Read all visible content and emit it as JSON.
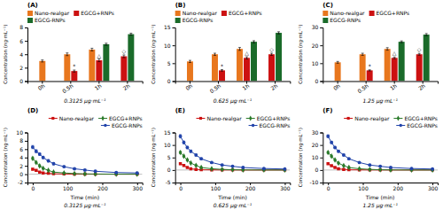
{
  "chart_data": [
    {
      "type": "bar",
      "title": "(A)",
      "subtitle": "0.3125 μg·mL⁻¹",
      "ylabel": "Concentration (ng·mL⁻¹)",
      "categories": [
        "0h",
        "0.5h",
        "1h",
        "2h"
      ],
      "series": [
        {
          "name": "Nano-realgar",
          "color": "#E8771E",
          "values": [
            3.0,
            4.0,
            4.7,
            null
          ],
          "errors": [
            0.15,
            0.2,
            0.2,
            null
          ]
        },
        {
          "name": "EGCG+RNPs",
          "color": "#CC1111",
          "values": [
            null,
            1.5,
            3.1,
            3.7
          ],
          "errors": [
            null,
            0.15,
            0.2,
            0.2
          ]
        },
        {
          "name": "EGCG-RNPs",
          "color": "#1A6B2A",
          "values": [
            null,
            null,
            5.5,
            7.0
          ],
          "errors": [
            null,
            null,
            0.15,
            0.15
          ]
        }
      ],
      "ylim": [
        0,
        8
      ],
      "yticks": [
        0,
        2,
        4,
        6,
        8
      ],
      "legend": "upper left",
      "annotations": [
        {
          "text": "*",
          "category": "0.5h",
          "series": "EGCG+RNPs"
        },
        {
          "text": "△",
          "category": "1h",
          "series": "EGCG+RNPs"
        },
        {
          "text": "◇",
          "category": "2h",
          "series": "EGCG+RNPs"
        }
      ]
    },
    {
      "type": "bar",
      "title": "(B)",
      "subtitle": "0.625 μg·mL⁻¹",
      "ylabel": "Concentration (ng·mL⁻¹)",
      "categories": [
        "0h",
        "0.5h",
        "1h",
        "2h"
      ],
      "series": [
        {
          "name": "Nano-realgar",
          "color": "#E8771E",
          "values": [
            5.5,
            7.5,
            9.0,
            null
          ],
          "errors": [
            0.3,
            0.3,
            0.4,
            null
          ]
        },
        {
          "name": "EGCG+RNPs",
          "color": "#CC1111",
          "values": [
            null,
            3.0,
            6.5,
            7.5
          ],
          "errors": [
            null,
            0.2,
            0.3,
            0.3
          ]
        },
        {
          "name": "EGCG-RNPs",
          "color": "#1A6B2A",
          "values": [
            null,
            null,
            11.0,
            13.5
          ],
          "errors": [
            null,
            null,
            0.3,
            0.3
          ]
        }
      ],
      "ylim": [
        0,
        15
      ],
      "yticks": [
        0,
        5,
        10,
        15
      ],
      "legend": "upper left",
      "annotations": [
        {
          "text": "*",
          "category": "0.5h",
          "series": "EGCG+RNPs"
        },
        {
          "text": "△",
          "category": "1h",
          "series": "EGCG+RNPs"
        },
        {
          "text": "◇",
          "category": "2h",
          "series": "EGCG+RNPs"
        }
      ]
    },
    {
      "type": "bar",
      "title": "(C)",
      "subtitle": "1.25 μg·mL⁻¹",
      "ylabel": "Concentration (ng·mL⁻¹)",
      "categories": [
        "0h",
        "0.5h",
        "1h",
        "2h"
      ],
      "series": [
        {
          "name": "Nano-realgar",
          "color": "#E8771E",
          "values": [
            10.5,
            15.0,
            18.0,
            null
          ],
          "errors": [
            0.5,
            0.6,
            0.7,
            null
          ]
        },
        {
          "name": "EGCG+RNPs",
          "color": "#CC1111",
          "values": [
            null,
            6.0,
            13.0,
            15.0
          ],
          "errors": [
            null,
            0.3,
            0.5,
            0.5
          ]
        },
        {
          "name": "EGCG-RNPs",
          "color": "#1A6B2A",
          "values": [
            null,
            null,
            22.0,
            26.0
          ],
          "errors": [
            null,
            null,
            0.5,
            0.6
          ]
        }
      ],
      "ylim": [
        0,
        30
      ],
      "yticks": [
        0,
        10,
        20,
        30
      ],
      "legend": "upper left",
      "annotations": [
        {
          "text": "*",
          "category": "0.5h",
          "series": "EGCG+RNPs"
        },
        {
          "text": "△",
          "category": "1h",
          "series": "EGCG+RNPs"
        },
        {
          "text": "◇",
          "category": "2h",
          "series": "EGCG+RNPs"
        }
      ]
    },
    {
      "type": "line",
      "title": "(D)",
      "subtitle": "0.3125 μg·mL⁻¹",
      "xlabel": "Time (min)",
      "ylabel": "Concentration (ng·mL⁻¹)",
      "x": [
        0,
        10,
        20,
        30,
        45,
        60,
        90,
        120,
        150,
        180,
        240,
        300
      ],
      "xlim": [
        -15,
        315
      ],
      "xticks": [
        0,
        100,
        200,
        300
      ],
      "ylim": [
        -2,
        10
      ],
      "yticks": [
        -2,
        0,
        2,
        4,
        6,
        8,
        10
      ],
      "legend": "upper right",
      "reference_lines": [
        0
      ],
      "series": [
        {
          "name": "Nano-realgar",
          "color": "#CC1111",
          "marker": "square",
          "values": [
            1.2,
            0.9,
            0.5,
            0.3,
            0.2,
            0.1,
            0.05,
            0.02,
            0.01,
            0.0,
            0.0,
            0.0
          ],
          "errors": [
            0.2,
            0.15,
            0.1,
            0.08,
            0.05,
            0.04,
            0.03,
            0.02,
            0.01,
            0.01,
            0.01,
            0.01
          ]
        },
        {
          "name": "EGCG+RNPs",
          "color": "#2A7A2A",
          "marker": "diamond",
          "values": [
            3.8,
            2.8,
            2.0,
            1.4,
            0.9,
            0.5,
            0.3,
            0.15,
            0.08,
            0.04,
            0.01,
            0.0
          ],
          "errors": [
            0.3,
            0.25,
            0.2,
            0.15,
            0.1,
            0.08,
            0.05,
            0.04,
            0.03,
            0.02,
            0.01,
            0.01
          ]
        },
        {
          "name": "EGCG-RNPs",
          "color": "#2244AA",
          "marker": "circle",
          "values": [
            6.5,
            5.5,
            4.8,
            4.0,
            3.2,
            2.5,
            1.8,
            1.3,
            1.0,
            0.7,
            0.4,
            0.3
          ],
          "errors": [
            0.4,
            0.4,
            0.3,
            0.3,
            0.3,
            0.3,
            0.25,
            0.2,
            0.2,
            0.2,
            0.15,
            0.1
          ]
        }
      ]
    },
    {
      "type": "line",
      "title": "(E)",
      "subtitle": "0.625 μg·mL⁻¹",
      "xlabel": "Time (min)",
      "ylabel": "Concentration (ng·mL⁻¹)",
      "x": [
        0,
        10,
        20,
        30,
        45,
        60,
        90,
        120,
        150,
        180,
        240,
        300
      ],
      "xlim": [
        -15,
        315
      ],
      "xticks": [
        0,
        100,
        200,
        300
      ],
      "ylim": [
        -5,
        15
      ],
      "yticks": [
        -5,
        0,
        5,
        10,
        15
      ],
      "legend": "upper right",
      "reference_lines": [
        0
      ],
      "series": [
        {
          "name": "Nano-realgar",
          "color": "#CC1111",
          "marker": "square",
          "values": [
            2.5,
            1.8,
            1.0,
            0.5,
            0.25,
            0.1,
            0.05,
            0.02,
            0.01,
            0.0,
            0.0,
            0.0
          ],
          "errors": [
            0.3,
            0.25,
            0.2,
            0.15,
            0.1,
            0.05,
            0.03,
            0.02,
            0.01,
            0.01,
            0.01,
            0.01
          ]
        },
        {
          "name": "EGCG+RNPs",
          "color": "#2A7A2A",
          "marker": "diamond",
          "values": [
            7.0,
            5.5,
            4.0,
            2.8,
            1.8,
            1.0,
            0.5,
            0.25,
            0.1,
            0.05,
            0.01,
            0.0
          ],
          "errors": [
            0.5,
            0.4,
            0.3,
            0.25,
            0.2,
            0.15,
            0.1,
            0.08,
            0.05,
            0.04,
            0.02,
            0.01
          ]
        },
        {
          "name": "EGCG-RNPs",
          "color": "#2244AA",
          "marker": "circle",
          "values": [
            13.5,
            11.0,
            9.0,
            7.5,
            6.0,
            4.5,
            3.0,
            2.0,
            1.5,
            1.0,
            0.6,
            0.4
          ],
          "errors": [
            0.7,
            0.6,
            0.5,
            0.5,
            0.4,
            0.4,
            0.35,
            0.3,
            0.25,
            0.25,
            0.2,
            0.15
          ]
        }
      ]
    },
    {
      "type": "line",
      "title": "(F)",
      "subtitle": "1.25 μg·mL⁻¹",
      "xlabel": "Time (min)",
      "ylabel": "Concentration (ng·mL⁻¹)",
      "x": [
        0,
        10,
        20,
        30,
        45,
        60,
        90,
        120,
        150,
        180,
        240,
        300
      ],
      "xlim": [
        -15,
        315
      ],
      "xticks": [
        0,
        100,
        200,
        300
      ],
      "ylim": [
        -10,
        30
      ],
      "yticks": [
        -10,
        0,
        10,
        20,
        30
      ],
      "legend": "upper right",
      "reference_lines": [
        0
      ],
      "series": [
        {
          "name": "Nano-realgar",
          "color": "#CC1111",
          "marker": "square",
          "values": [
            5.0,
            3.5,
            2.0,
            1.0,
            0.5,
            0.2,
            0.1,
            0.05,
            0.02,
            0.01,
            0.0,
            0.0
          ],
          "errors": [
            0.5,
            0.4,
            0.3,
            0.2,
            0.15,
            0.1,
            0.05,
            0.04,
            0.02,
            0.01,
            0.01,
            0.01
          ]
        },
        {
          "name": "EGCG+RNPs",
          "color": "#2A7A2A",
          "marker": "diamond",
          "values": [
            14.0,
            11.0,
            8.0,
            5.5,
            3.5,
            2.0,
            1.0,
            0.5,
            0.2,
            0.1,
            0.02,
            0.0
          ],
          "errors": [
            0.8,
            0.7,
            0.6,
            0.5,
            0.4,
            0.3,
            0.2,
            0.15,
            0.1,
            0.08,
            0.05,
            0.02
          ]
        },
        {
          "name": "EGCG-RNPs",
          "color": "#2244AA",
          "marker": "circle",
          "values": [
            27.0,
            22.0,
            18.0,
            15.0,
            12.0,
            9.0,
            6.0,
            4.0,
            3.0,
            2.0,
            1.2,
            0.8
          ],
          "errors": [
            1.2,
            1.0,
            0.9,
            0.8,
            0.7,
            0.6,
            0.5,
            0.4,
            0.35,
            0.3,
            0.25,
            0.2
          ]
        }
      ]
    }
  ]
}
